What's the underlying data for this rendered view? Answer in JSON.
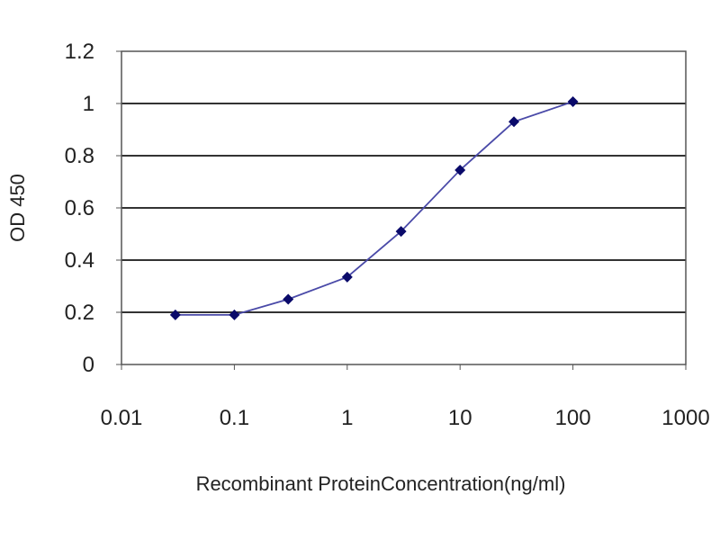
{
  "chart_data": {
    "type": "line",
    "title": "",
    "xlabel": "Recombinant ProteinConcentration(ng/ml)",
    "ylabel": "OD 450",
    "x_scale": "log",
    "xlim": [
      0.01,
      1000
    ],
    "ylim": [
      0,
      1.2
    ],
    "x_ticks": [
      "0.01",
      "0.1",
      "1",
      "10",
      "100",
      "1000"
    ],
    "y_ticks": [
      "0",
      "0.2",
      "0.4",
      "0.6",
      "0.8",
      "1",
      "1.2"
    ],
    "grid": "horizontal",
    "legend": "none",
    "series": [
      {
        "x": [
          0.03,
          0.1,
          0.3,
          1,
          3,
          10,
          30,
          100
        ],
        "y": [
          0.19,
          0.19,
          0.25,
          0.335,
          0.51,
          0.745,
          0.93,
          1.007
        ]
      }
    ],
    "colors": {
      "line": "#4a4aa8",
      "marker": "#0a0a6a",
      "grid": "#333333"
    }
  }
}
